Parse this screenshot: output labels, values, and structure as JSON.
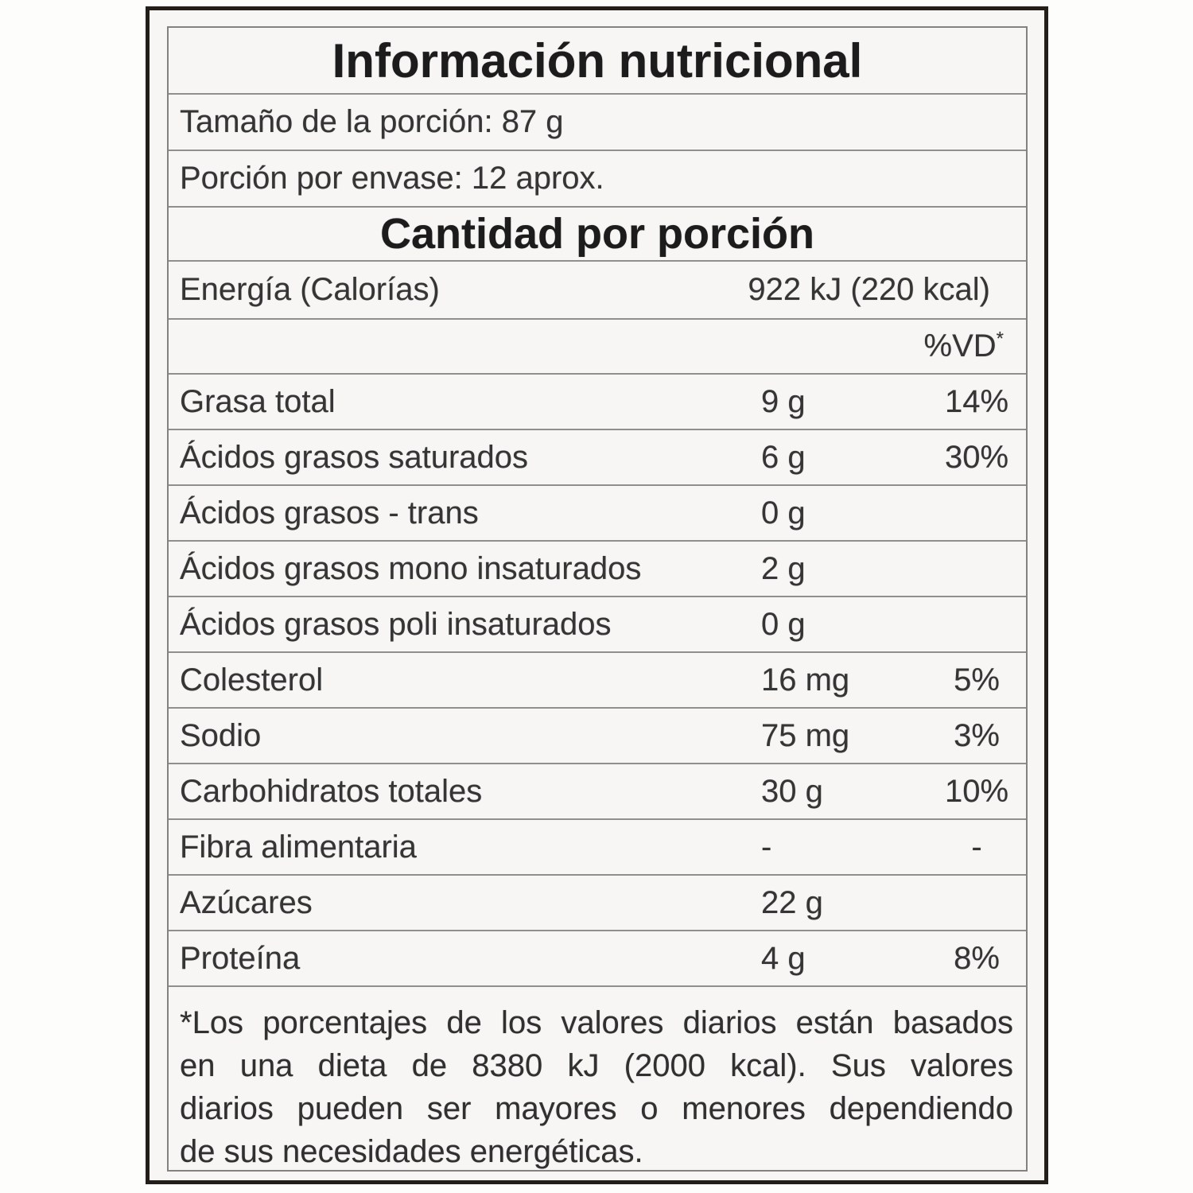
{
  "label": {
    "title": "Información nutricional",
    "serving_size": "Tamaño de la porción: 87 g",
    "servings_per_container": "Porción por envase: 12 aprox.",
    "amount_header": "Cantidad por porción",
    "energy": {
      "name": "Energía (Calorías)",
      "value": "922 kJ (220 kcal)"
    },
    "dv_header": "%VD",
    "dv_header_sup": "*",
    "rows": [
      {
        "name": "Grasa total",
        "value": "9 g",
        "dv": "14%"
      },
      {
        "name": "Ácidos grasos saturados",
        "value": "6 g",
        "dv": "30%"
      },
      {
        "name": "Ácidos grasos - trans",
        "value": "0 g",
        "dv": ""
      },
      {
        "name": "Ácidos grasos mono insaturados",
        "value": "2 g",
        "dv": ""
      },
      {
        "name": "Ácidos grasos poli insaturados",
        "value": "0 g",
        "dv": ""
      },
      {
        "name": "Colesterol",
        "value": "16 mg",
        "dv": "5%"
      },
      {
        "name": "Sodio",
        "value": "75 mg",
        "dv": "3%"
      },
      {
        "name": "Carbohidratos totales",
        "value": "30 g",
        "dv": "10%"
      },
      {
        "name": "Fibra alimentaria",
        "value": "-",
        "dv": "-"
      },
      {
        "name": "Azúcares",
        "value": "22 g",
        "dv": ""
      },
      {
        "name": "Proteína",
        "value": "4 g",
        "dv": "8%"
      }
    ],
    "footnote_lines": [
      "*Los porcentajes de los valores diarios están basados",
      "en una dieta de 8380 kJ (2000 kcal). Sus valores",
      "diarios pueden ser mayores o menores dependiendo",
      "de sus necesidades energéticas."
    ]
  }
}
